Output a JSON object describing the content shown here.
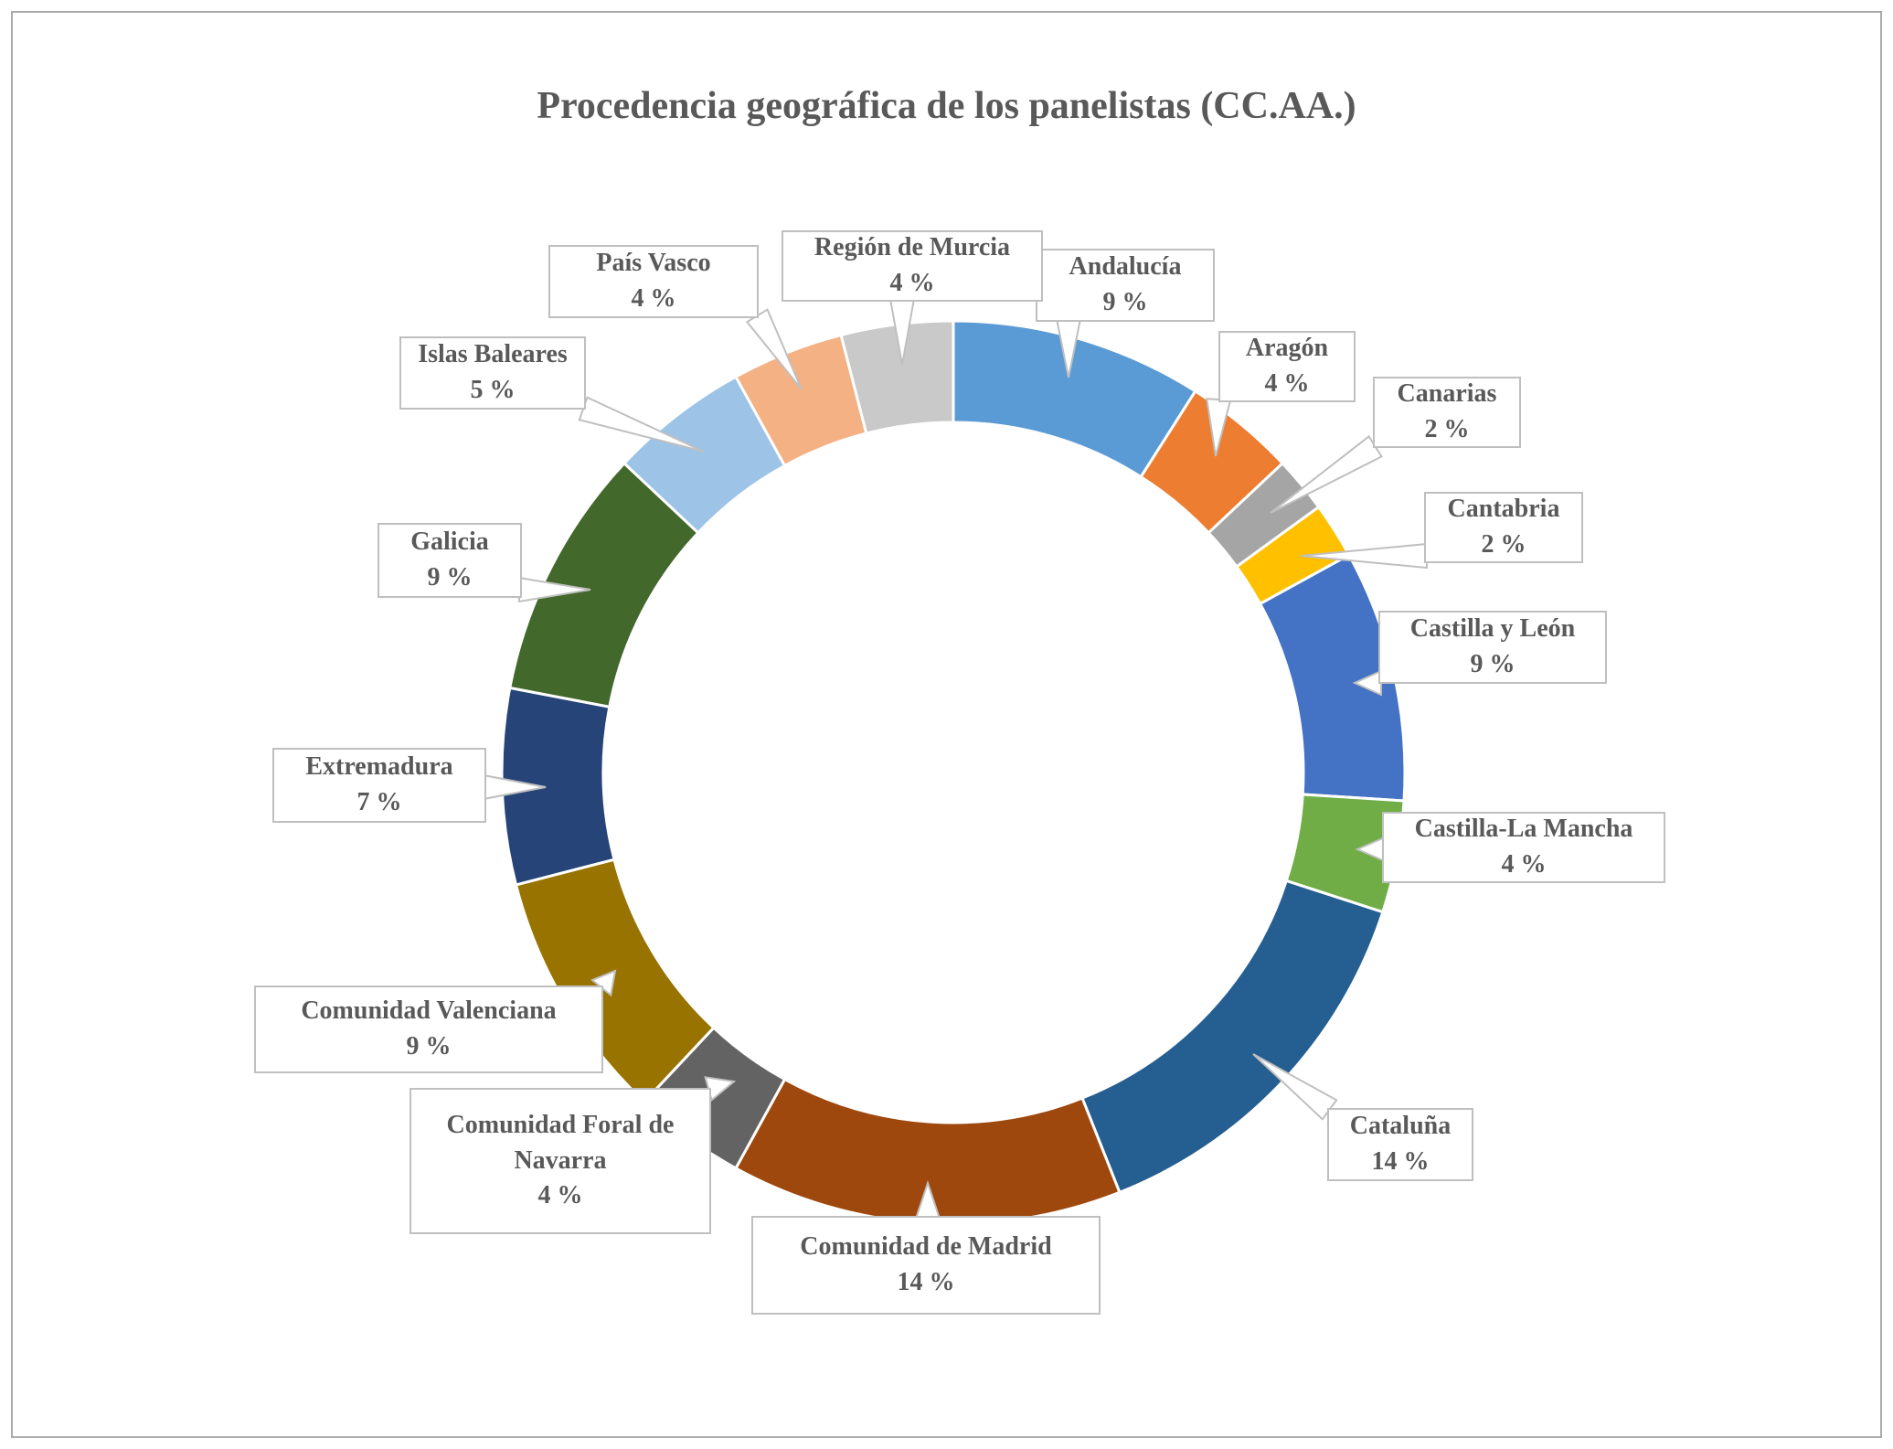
{
  "chart_data": {
    "type": "pie",
    "subtype": "donut",
    "title": "Procedencia geográfica de los panelistas (CC.AA.)",
    "unit": "%",
    "start_angle_deg": 0,
    "direction": "clockwise",
    "legend": "none",
    "labels_style": "callout-boxes-with-leader-lines",
    "total": 100,
    "slices": [
      {
        "label": "Andalucía",
        "value": 9,
        "pct_label": "9 %",
        "color": "#5B9BD5"
      },
      {
        "label": "Aragón",
        "value": 4,
        "pct_label": "4 %",
        "color": "#ED7D31"
      },
      {
        "label": "Canarias",
        "value": 2,
        "pct_label": "2 %",
        "color": "#A5A5A5"
      },
      {
        "label": "Cantabria",
        "value": 2,
        "pct_label": "2 %",
        "color": "#FFC000"
      },
      {
        "label": "Castilla y León",
        "value": 9,
        "pct_label": "9 %",
        "color": "#4472C4"
      },
      {
        "label": "Castilla-La Mancha",
        "value": 4,
        "pct_label": "4 %",
        "color": "#70AD47"
      },
      {
        "label": "Cataluña",
        "value": 14,
        "pct_label": "14 %",
        "color": "#255E91"
      },
      {
        "label": "Comunidad de Madrid",
        "value": 14,
        "pct_label": "14 %",
        "color": "#9E480E"
      },
      {
        "label": "Comunidad Foral de Navarra",
        "value": 4,
        "pct_label": "4 %",
        "color": "#636363"
      },
      {
        "label": "Comunidad Valenciana",
        "value": 9,
        "pct_label": "9 %",
        "color": "#997300"
      },
      {
        "label": "Extremadura",
        "value": 7,
        "pct_label": "7 %",
        "color": "#264478"
      },
      {
        "label": "Galicia",
        "value": 9,
        "pct_label": "9 %",
        "color": "#43682B"
      },
      {
        "label": "Islas Baleares",
        "value": 5,
        "pct_label": "5 %",
        "color": "#9DC3E6"
      },
      {
        "label": "País Vasco",
        "value": 4,
        "pct_label": "4 %",
        "color": "#F4B183"
      },
      {
        "label": "Región de Murcia",
        "value": 4,
        "pct_label": "4 %",
        "color": "#C9C9C9"
      }
    ]
  },
  "colors": {
    "text": "#595959",
    "callout_border": "#BFBFBF",
    "slice_separator": "#FFFFFF",
    "page_border": "#ABABAB",
    "background": "#FFFFFF"
  }
}
